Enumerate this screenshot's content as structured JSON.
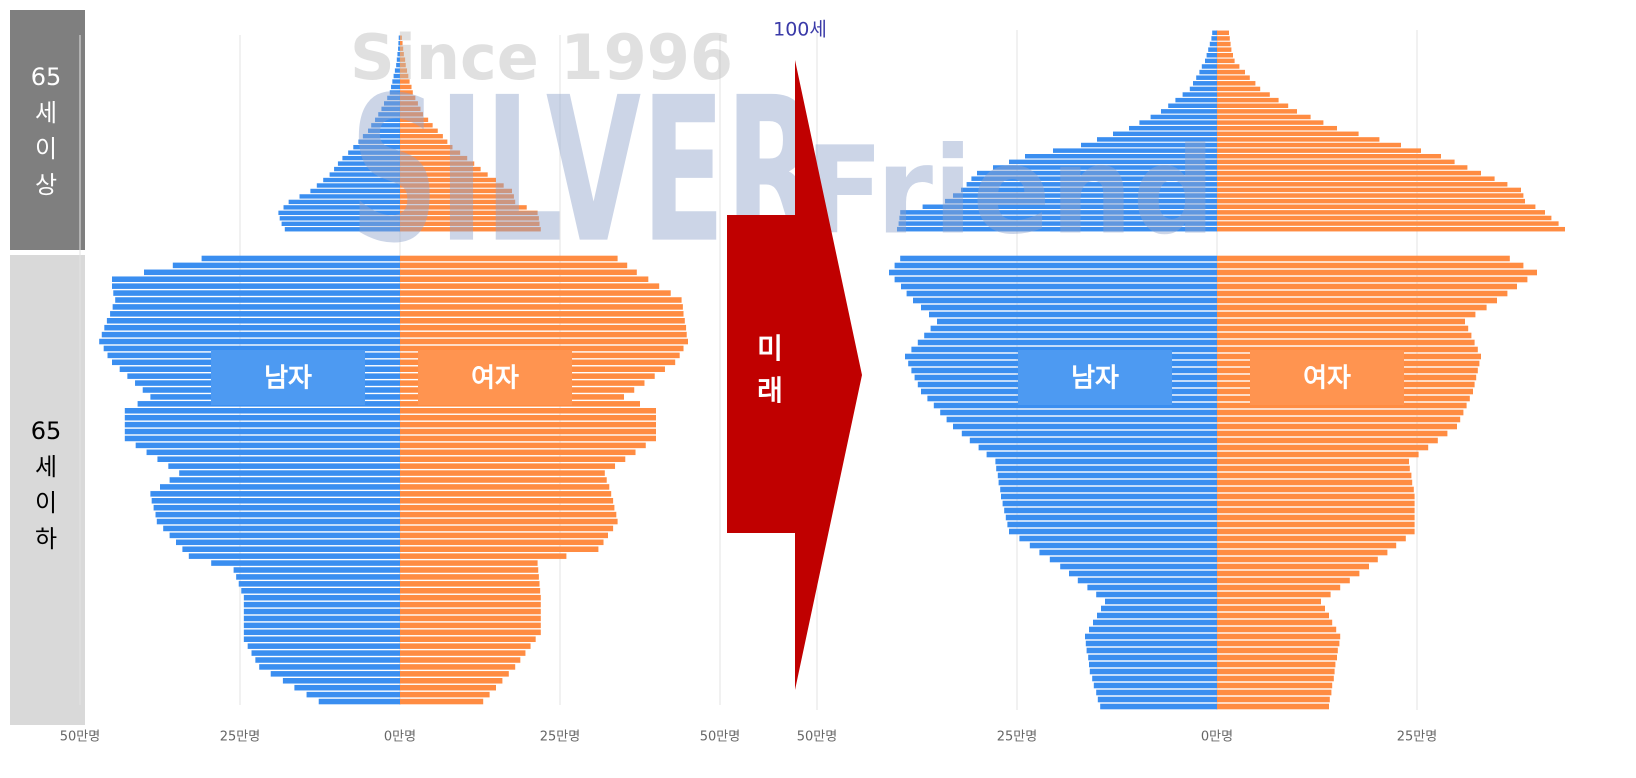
{
  "chart_data": [
    {
      "type": "pyramid",
      "xlim": [
        -50,
        50
      ],
      "xticks": [
        {
          "value": -50,
          "label": "50만명"
        },
        {
          "value": -25,
          "label": "25만명"
        },
        {
          "value": 0,
          "label": "0만명"
        },
        {
          "value": 25,
          "label": "25만명"
        },
        {
          "value": 50,
          "label": "50만명"
        }
      ],
      "series": [
        {
          "name": "남자",
          "color": "#3a8ef0",
          "values": [
            12.7,
            14.6,
            16.5,
            18.3,
            20.2,
            22,
            22.6,
            23.2,
            23.8,
            24.4,
            24.4,
            24.4,
            24.4,
            24.4,
            24.4,
            24.4,
            24.8,
            25.2,
            25.6,
            26,
            29.5,
            33,
            34,
            35,
            36,
            37,
            38,
            38.2,
            38.5,
            38.8,
            39,
            37.5,
            36,
            34.5,
            36.2,
            37.9,
            39.6,
            41.3,
            43,
            43,
            43,
            43,
            43,
            41,
            39,
            40.2,
            41.4,
            42.6,
            43.8,
            45,
            45.7,
            46.3,
            47,
            46.6,
            46.2,
            45.8,
            45.3,
            44.9,
            44.5,
            44.8,
            45,
            45,
            40,
            35.5,
            31,
            18,
            18.5,
            18.8,
            19,
            18.2,
            17.4,
            15.7,
            14,
            13,
            12,
            11,
            10.3,
            9.7,
            9,
            8.1,
            7.3,
            6.5,
            5.8,
            5,
            4.5,
            3.9,
            3.4,
            2.9,
            2.5,
            2,
            1.6,
            1.4,
            1.2,
            1,
            0.8,
            0.6,
            0.5,
            0.4,
            0.3,
            0.25,
            0.2
          ]
        },
        {
          "name": "여자",
          "color": "#ff8c42",
          "values": [
            13,
            14,
            15,
            16,
            17,
            18,
            18.8,
            19.6,
            20.4,
            21.2,
            22,
            22,
            22,
            22,
            22,
            22,
            21.9,
            21.8,
            21.7,
            21.6,
            21.5,
            26,
            31,
            31.8,
            32.5,
            33.3,
            34,
            33.8,
            33.5,
            33.3,
            33,
            32.7,
            32.3,
            32,
            33.6,
            35.2,
            36.8,
            38.4,
            40,
            40,
            40,
            40,
            40,
            37.5,
            35,
            36.6,
            38.2,
            39.8,
            41.4,
            43,
            43.7,
            44.3,
            45,
            44.8,
            44.7,
            44.5,
            44.3,
            44.2,
            44,
            42.3,
            40.5,
            38.8,
            37,
            35.5,
            34,
            22,
            21.8,
            21.7,
            21.5,
            19.8,
            18,
            17.8,
            17.5,
            16.2,
            15,
            13.7,
            12.6,
            11.6,
            10.5,
            9.4,
            8.2,
            7.4,
            6.7,
            5.9,
            5.1,
            4.4,
            3.6,
            3.2,
            2.8,
            2.4,
            2,
            1.8,
            1.5,
            1.3,
            1.1,
            0.9,
            0.8,
            0.6,
            0.5,
            0.4,
            0.3
          ]
        }
      ]
    },
    {
      "type": "pyramid",
      "xlim": [
        -50,
        50
      ],
      "xticks": [
        {
          "value": -50,
          "label": "50만명"
        },
        {
          "value": -25,
          "label": "25만명"
        },
        {
          "value": 0,
          "label": "0만명"
        },
        {
          "value": 25,
          "label": "25만명"
        }
      ],
      "series": [
        {
          "name": "남자",
          "color": "#3a8ef0",
          "values": [
            14.6,
            14.9,
            15.1,
            15.4,
            15.6,
            15.9,
            16,
            16.1,
            16.3,
            16.4,
            16.5,
            16,
            15.5,
            15,
            14.5,
            14,
            15.1,
            16.2,
            17.4,
            18.5,
            19.6,
            20.9,
            22.2,
            23.4,
            24.7,
            26,
            26.2,
            26.4,
            26.6,
            26.8,
            27,
            27.1,
            27.3,
            27.4,
            27.6,
            27.7,
            28.8,
            29.8,
            30.9,
            31.9,
            33,
            33.8,
            34.6,
            35.4,
            36.2,
            37,
            37.4,
            37.8,
            38.2,
            38.6,
            39,
            38.2,
            37.4,
            36.6,
            35.8,
            35,
            36,
            37,
            38,
            38.8,
            39.5,
            40.3,
            41,
            40.3,
            39.6,
            40,
            39.8,
            39.7,
            39.6,
            36.8,
            34,
            33,
            32,
            31.3,
            30.7,
            30,
            28,
            26,
            24,
            20.5,
            17,
            15,
            13,
            11,
            9.7,
            8.3,
            7,
            6.1,
            5.2,
            4.3,
            3.4,
            3,
            2.6,
            2.2,
            1.9,
            1.5,
            1.3,
            1.1,
            0.9,
            0.7,
            0.6
          ]
        },
        {
          "name": "여자",
          "color": "#ff8c42",
          "values": [
            14,
            14.1,
            14.3,
            14.4,
            14.6,
            14.7,
            14.8,
            15,
            15.1,
            15.3,
            15.4,
            14.9,
            14.4,
            14,
            13.5,
            13,
            14.2,
            15.4,
            16.6,
            17.8,
            19,
            20.1,
            21.3,
            22.4,
            23.6,
            24.7,
            24.7,
            24.7,
            24.7,
            24.7,
            24.7,
            24.6,
            24.4,
            24.3,
            24.1,
            24,
            25.2,
            26.4,
            27.6,
            28.8,
            30,
            30.4,
            30.8,
            31.2,
            31.6,
            32,
            32.2,
            32.4,
            32.6,
            32.8,
            33,
            32.6,
            32.2,
            31.8,
            31.4,
            31,
            32.3,
            33.7,
            35,
            36.3,
            37.5,
            38.8,
            40,
            38.3,
            36.6,
            43.5,
            42.7,
            41.8,
            41,
            39.8,
            38.5,
            38.3,
            38,
            36.3,
            34.7,
            33,
            31.3,
            29.7,
            28,
            25.5,
            23,
            20.3,
            17.7,
            15,
            13.3,
            11.7,
            10,
            8.9,
            7.7,
            6.6,
            5.4,
            4.8,
            4.1,
            3.5,
            2.8,
            2.2,
            2,
            1.8,
            1.7,
            1.6,
            1.5
          ]
        }
      ]
    }
  ],
  "sections": [
    {
      "lines": [
        "65",
        "세",
        "이",
        "상"
      ]
    },
    {
      "lines": [
        "65",
        "세",
        "이",
        "하"
      ]
    }
  ],
  "arrow": {
    "lines": [
      "미",
      "래"
    ],
    "annotation": "100세"
  },
  "watermark": {
    "since": "Since 1996",
    "brand": "SILVER",
    "brand2": "Friend"
  }
}
